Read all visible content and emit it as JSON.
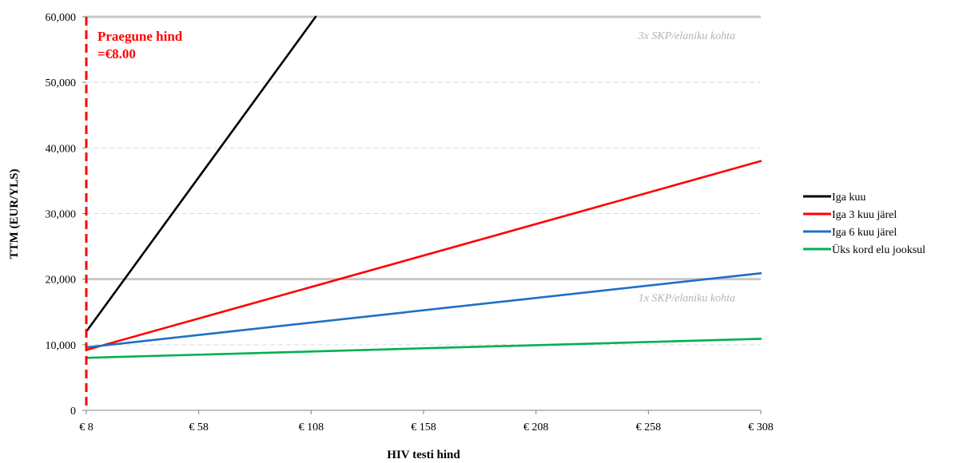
{
  "chart_data": {
    "type": "line",
    "xlabel": "HIV testi hind",
    "ylabel": "TTM (EUR/YLS)",
    "xlim": [
      8,
      308
    ],
    "ylim": [
      0,
      60000
    ],
    "x_ticks": [
      8,
      58,
      108,
      158,
      208,
      258,
      308
    ],
    "x_tick_labels": [
      "€ 8",
      "€ 58",
      "€ 108",
      "€ 158",
      "€ 208",
      "€ 258",
      "€ 308"
    ],
    "y_ticks": [
      0,
      10000,
      20000,
      30000,
      40000,
      50000,
      60000
    ],
    "y_tick_labels": [
      "0",
      "10,000",
      "20,000",
      "30,000",
      "40,000",
      "50,000",
      "60,000"
    ],
    "grid": "horizontal dashed",
    "legend_position": "right",
    "series": [
      {
        "name": "Iga kuu",
        "color": "#000000",
        "x": [
          8,
          110
        ],
        "y": [
          12000,
          60000
        ]
      },
      {
        "name": "Iga 3 kuu järel",
        "color": "#ff0000",
        "x": [
          8,
          308
        ],
        "y": [
          9200,
          38000
        ]
      },
      {
        "name": "Iga 6 kuu järel",
        "color": "#1f6fc4",
        "x": [
          8,
          308
        ],
        "y": [
          9600,
          20900
        ]
      },
      {
        "name": "Üks kord elu jooksul",
        "color": "#00b050",
        "x": [
          8,
          308
        ],
        "y": [
          8000,
          10900
        ]
      }
    ],
    "reference_lines": [
      {
        "label": "3x SKP/elaniku kohta",
        "y": 60000,
        "color": "#c8c8c8"
      },
      {
        "label": "1x SKP/elaniku kohta",
        "y": 20000,
        "color": "#c8c8c8"
      }
    ],
    "vertical_marker": {
      "x": 8,
      "color": "#ff0000",
      "label_line1": "Praegune hind",
      "label_line2": "=€8.00"
    }
  }
}
